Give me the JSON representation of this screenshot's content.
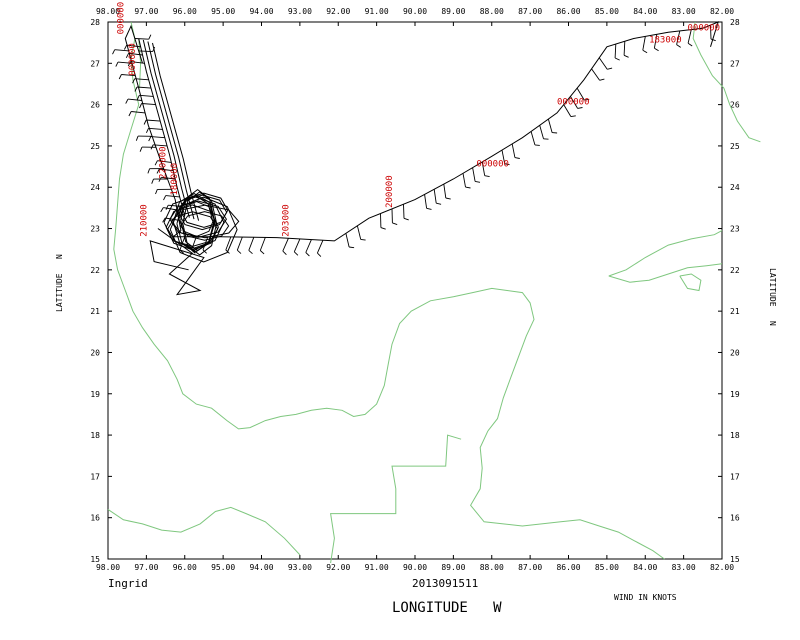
{
  "storm_name": "Ingrid",
  "datetime": "2013091511",
  "x_axis_title": "LONGITUDE   W",
  "y_axis_title": "LATITUDE   N",
  "wind_note": "WIND IN KNOTS",
  "colors": {
    "coast": "#7fc77f",
    "track": "#000000",
    "time_labels": "#cc0000"
  },
  "chart_data": {
    "type": "map",
    "xlim": [
      98,
      82
    ],
    "ylim": [
      15,
      28
    ],
    "x_ticks": [
      "98.00",
      "97.00",
      "96.00",
      "95.00",
      "94.00",
      "93.00",
      "92.00",
      "91.00",
      "90.00",
      "89.00",
      "88.00",
      "87.00",
      "86.00",
      "85.00",
      "84.00",
      "83.00",
      "82.00"
    ],
    "y_ticks": [
      "15",
      "16",
      "17",
      "18",
      "19",
      "20",
      "21",
      "22",
      "23",
      "24",
      "25",
      "26",
      "27",
      "28"
    ],
    "time_labels": [
      {
        "text": "000000",
        "lon": 97.6,
        "lat": 27.7
      },
      {
        "text": "000000",
        "lon": 97.3,
        "lat": 26.7
      },
      {
        "text": "220000",
        "lon": 96.5,
        "lat": 24.2
      },
      {
        "text": "180000",
        "lon": 96.2,
        "lat": 23.8
      },
      {
        "text": "210000",
        "lon": 97.0,
        "lat": 22.8
      },
      {
        "text": "203000",
        "lon": 93.3,
        "lat": 22.8
      },
      {
        "text": "200000",
        "lon": 90.6,
        "lat": 23.5
      },
      {
        "text": "000000",
        "lon": 88.4,
        "lat": 24.5
      },
      {
        "text": "000000",
        "lon": 86.3,
        "lat": 26.0
      },
      {
        "text": "183000",
        "lon": 83.9,
        "lat": 27.5
      },
      {
        "text": "000000",
        "lon": 82.9,
        "lat": 27.8
      }
    ]
  }
}
